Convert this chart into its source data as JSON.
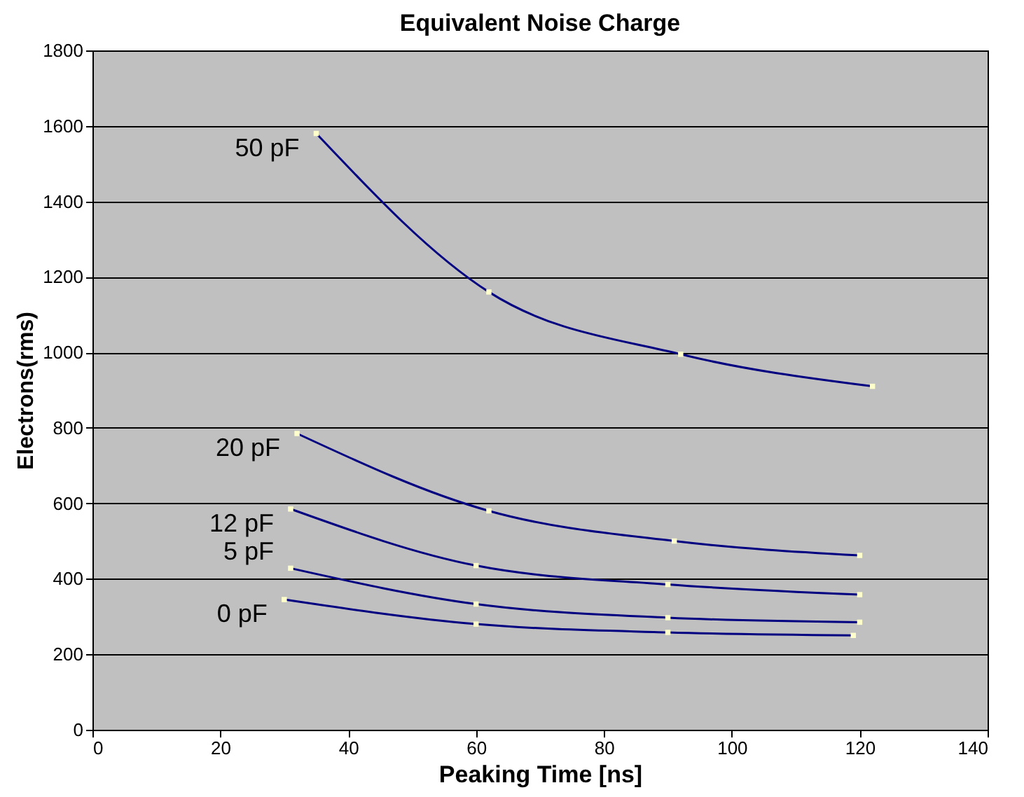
{
  "chart_data": {
    "type": "line",
    "title": "Equivalent Noise Charge",
    "xlabel": "Peaking Time [ns]",
    "ylabel": "Electrons(rms)",
    "xlim": [
      0,
      140
    ],
    "xticks": [
      0,
      20,
      40,
      60,
      80,
      100,
      120,
      140
    ],
    "ylim": [
      0,
      1800
    ],
    "yticks": [
      0,
      200,
      400,
      600,
      800,
      1000,
      1200,
      1400,
      1600,
      1800
    ],
    "grid": "y",
    "legend": false,
    "marker": "square",
    "line_style": "solid",
    "series": [
      {
        "name": "50 pF",
        "color": "#000080",
        "x": [
          35,
          62,
          92,
          122
        ],
        "values": [
          1580,
          1160,
          995,
          910
        ]
      },
      {
        "name": "20 pF",
        "color": "#000080",
        "x": [
          32,
          62,
          91,
          120
        ],
        "values": [
          785,
          580,
          500,
          462
        ]
      },
      {
        "name": "12 pF",
        "color": "#000080",
        "x": [
          31,
          60,
          90,
          120
        ],
        "values": [
          585,
          435,
          385,
          358
        ]
      },
      {
        "name": "5 pF",
        "color": "#000080",
        "x": [
          31,
          60,
          90,
          120
        ],
        "values": [
          428,
          333,
          297,
          285
        ]
      },
      {
        "name": "0 pF",
        "color": "#000080",
        "x": [
          30,
          60,
          90,
          119
        ],
        "values": [
          345,
          280,
          258,
          250
        ]
      }
    ]
  }
}
